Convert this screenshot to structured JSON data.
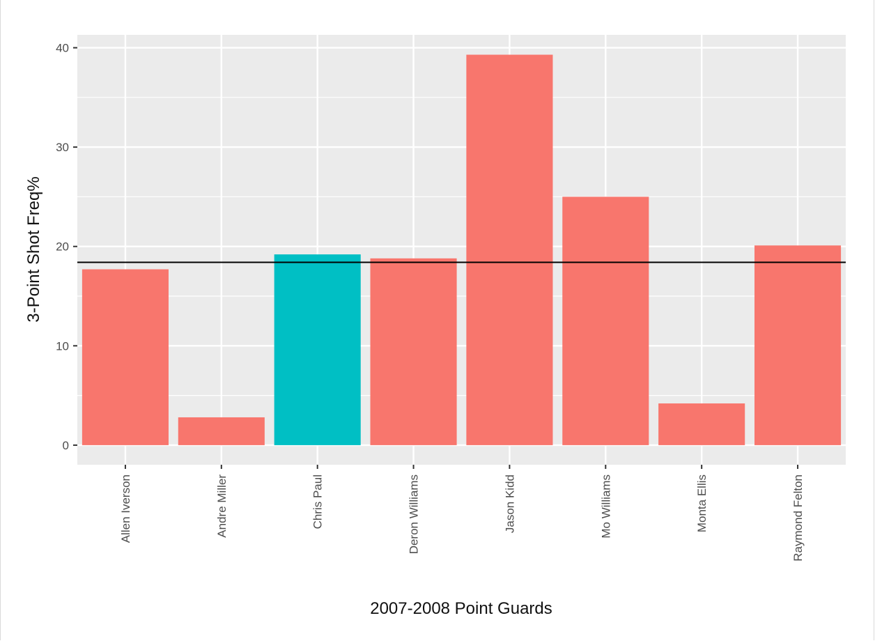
{
  "chart_data": {
    "type": "bar",
    "xlabel": "2007-2008 Point Guards",
    "ylabel": "3-Point Shot Freq%",
    "categories": [
      "Allen Iverson",
      "Andre Miller",
      "Chris Paul",
      "Deron Williams",
      "Jason Kidd",
      "Mo Williams",
      "Monta Ellis",
      "Raymond Felton"
    ],
    "values": [
      17.7,
      2.8,
      19.2,
      18.8,
      39.3,
      25.0,
      4.2,
      20.1
    ],
    "highlight": [
      "Chris Paul"
    ],
    "colors": {
      "default": "#F8766D",
      "highlight": "#00BFC4",
      "panel": "#EBEBEB",
      "grid": "#FFFFFF",
      "reference_line": "#000000"
    },
    "reference_line": 18.4,
    "ylim": [
      -1.97,
      41.3
    ],
    "yticks": [
      0,
      10,
      20,
      30,
      40
    ],
    "grid": true,
    "legend": "none"
  }
}
